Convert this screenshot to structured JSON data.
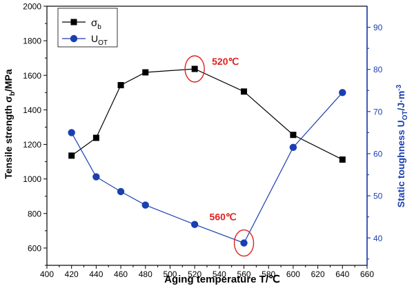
{
  "chart_data": {
    "type": "line",
    "title": "",
    "xlabel": "Aging temperature T/℃",
    "xlim": [
      400,
      660
    ],
    "x_ticks": [
      "400",
      "420",
      "440",
      "460",
      "480",
      "500",
      "520",
      "540",
      "560",
      "580",
      "600",
      "620",
      "640",
      "660"
    ],
    "left_axis": {
      "label_main": "Tensile strength σ",
      "label_sub": "b",
      "label_unit": "/MPa",
      "ylim": [
        500,
        2000
      ],
      "ticks": [
        "600",
        "800",
        "1000",
        "1200",
        "1400",
        "1600",
        "1800",
        "2000"
      ],
      "color": "#000000"
    },
    "right_axis": {
      "label_main": "Static toughness U",
      "label_sub": "OT",
      "label_unit": "/J·m",
      "label_sup": "-3",
      "ylim": [
        33.5,
        95
      ],
      "ticks": [
        "40",
        "50",
        "60",
        "70",
        "80",
        "90"
      ],
      "color": "#1a3fb0"
    },
    "series": [
      {
        "name": "σ",
        "name_sub": "b",
        "axis": "left",
        "marker": "square",
        "color": "#000000",
        "x": [
          420,
          440,
          460,
          480,
          520,
          560,
          600,
          640
        ],
        "values": [
          1135,
          1238,
          1543,
          1617,
          1637,
          1506,
          1255,
          1112
        ]
      },
      {
        "name": "U",
        "name_sub": "OT",
        "axis": "right",
        "marker": "circle",
        "color": "#1a3fb0",
        "x": [
          420,
          440,
          460,
          480,
          520,
          560,
          600,
          640
        ],
        "values": [
          65,
          54.5,
          51,
          47.8,
          43.2,
          38.8,
          61.5,
          74.5
        ]
      }
    ],
    "annotations": [
      {
        "text": "520℃",
        "x": 520,
        "series": 0,
        "color": "#e02020"
      },
      {
        "text": "560℃",
        "x": 560,
        "series": 1,
        "color": "#e02020"
      }
    ],
    "grid": false,
    "legend": "top-left"
  }
}
